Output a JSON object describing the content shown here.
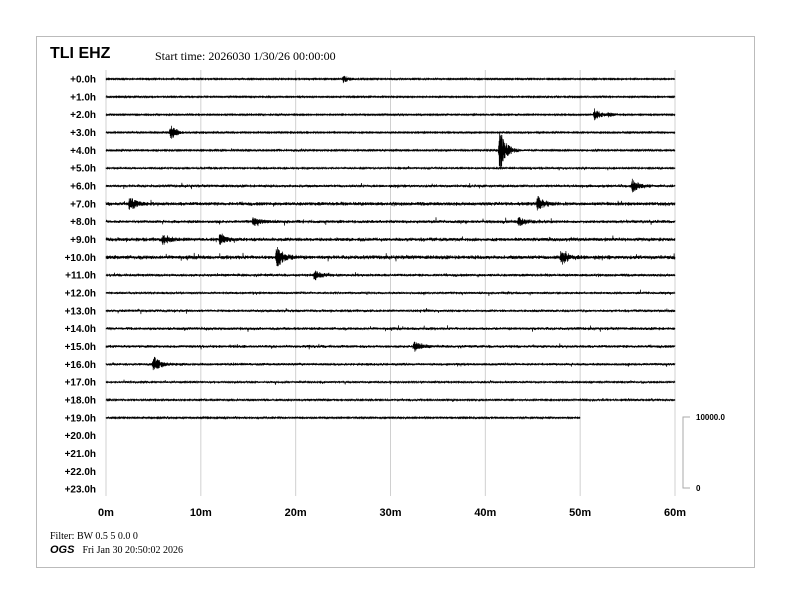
{
  "header": {
    "station": "TLI EHZ",
    "start_time": "Start time: 2026030  1/30/26 00:00:00"
  },
  "footer": {
    "filter": "Filter: BW 0.5 5 0.0 0",
    "org": "OGS",
    "timestamp": "Fri Jan 30 20:50:02 2026"
  },
  "chart_data": {
    "type": "line",
    "title": "TLI EHZ",
    "row_labels": [
      "+0.0h",
      "+1.0h",
      "+2.0h",
      "+3.0h",
      "+4.0h",
      "+5.0h",
      "+6.0h",
      "+7.0h",
      "+8.0h",
      "+9.0h",
      "+10.0h",
      "+11.0h",
      "+12.0h",
      "+13.0h",
      "+14.0h",
      "+15.0h",
      "+16.0h",
      "+17.0h",
      "+18.0h",
      "+19.0h",
      "+20.0h",
      "+21.0h",
      "+22.0h",
      "+23.0h"
    ],
    "x_ticks": [
      "0m",
      "10m",
      "20m",
      "30m",
      "40m",
      "50m",
      "60m"
    ],
    "xlim": [
      0,
      60
    ],
    "grid": true,
    "trace_color": "#000000",
    "data_end": {
      "hour": 19,
      "minute": 50
    },
    "noise_level": [
      0.5,
      0.5,
      0.5,
      0.5,
      0.6,
      0.8,
      1.2,
      1.5,
      1.3,
      1.5,
      1.6,
      1.2,
      1.0,
      1.1,
      1.2,
      1.2,
      1.1,
      0.8,
      0.7,
      0.6
    ],
    "events": [
      {
        "hour": 0,
        "minute": 25,
        "amp": 4
      },
      {
        "hour": 2,
        "minute": 51.5,
        "amp": 7
      },
      {
        "hour": 2,
        "minute": 53,
        "amp": 2
      },
      {
        "hour": 3,
        "minute": 6.8,
        "amp": 8
      },
      {
        "hour": 4,
        "minute": 41.5,
        "amp": 22
      },
      {
        "hour": 6,
        "minute": 55.5,
        "amp": 6
      },
      {
        "hour": 7,
        "minute": 2.5,
        "amp": 7
      },
      {
        "hour": 7,
        "minute": 45.5,
        "amp": 7
      },
      {
        "hour": 8,
        "minute": 15.5,
        "amp": 4
      },
      {
        "hour": 8,
        "minute": 43.5,
        "amp": 4
      },
      {
        "hour": 9,
        "minute": 6,
        "amp": 5
      },
      {
        "hour": 9,
        "minute": 12,
        "amp": 4
      },
      {
        "hour": 10,
        "minute": 18,
        "amp": 11
      },
      {
        "hour": 10,
        "minute": 48,
        "amp": 7
      },
      {
        "hour": 11,
        "minute": 22,
        "amp": 5
      },
      {
        "hour": 15,
        "minute": 32.5,
        "amp": 5
      },
      {
        "hour": 16,
        "minute": 5,
        "amp": 8
      }
    ],
    "scale": {
      "max_label": "10000.0",
      "min_label": "0"
    }
  }
}
